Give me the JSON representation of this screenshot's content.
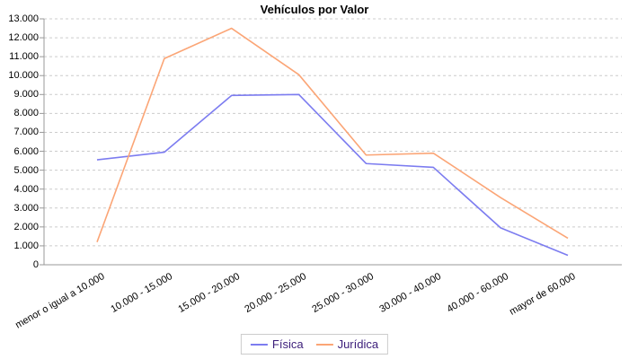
{
  "title": "Vehículos por Valor",
  "chart_data": {
    "type": "line",
    "title": "Vehículos por Valor",
    "categories": [
      "menor o igual a 10.000",
      "10.000 - 15.000",
      "15.000 - 20.000",
      "20.000 - 25.000",
      "25.000 - 30.000",
      "30.000 - 40.000",
      "40.000 - 60.000",
      "mayor de 60.000"
    ],
    "series": [
      {
        "name": "Física",
        "color": "#7c7cf0",
        "values": [
          5550,
          5950,
          8950,
          9000,
          5350,
          5150,
          1950,
          500
        ]
      },
      {
        "name": "Jurídica",
        "color": "#fba576",
        "values": [
          1200,
          10900,
          12500,
          10050,
          5800,
          5900,
          3550,
          1400
        ]
      }
    ],
    "xlabel": "",
    "ylabel": "",
    "ylim": [
      0,
      13000
    ],
    "ytick_step": 1000,
    "ytick_labels": [
      "0",
      "1.000",
      "2.000",
      "3.000",
      "4.000",
      "5.000",
      "6.000",
      "7.000",
      "8.000",
      "9.000",
      "10.000",
      "11.000",
      "12.000",
      "13.000"
    ],
    "grid": "horizontal-dashed",
    "legend_position": "bottom-center"
  },
  "legend": {
    "text_color": "#3b1d7a",
    "items": [
      {
        "label": "Física",
        "color": "#7c7cf0"
      },
      {
        "label": "Jurídica",
        "color": "#fba576"
      }
    ]
  },
  "style_colors": {
    "background": "#ffffff",
    "gridline": "#cccccc",
    "axis": "#999999",
    "tick_text": "#000000"
  }
}
